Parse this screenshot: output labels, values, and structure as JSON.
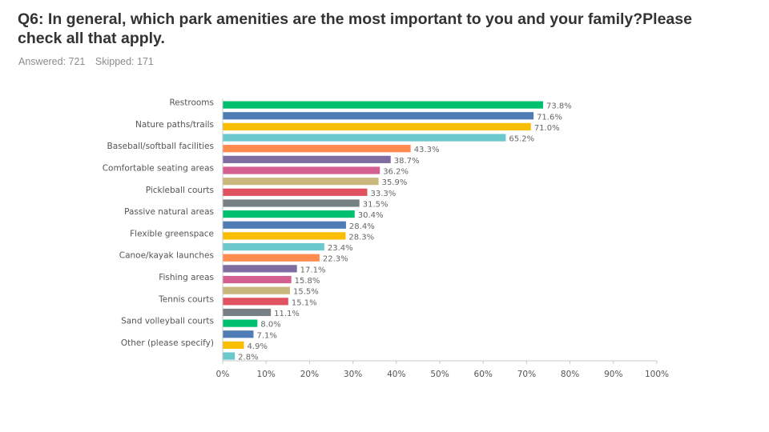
{
  "question": {
    "title": "Q6: In general, which park amenities are the most important to you and your family?Please check all that apply.",
    "answered": "Answered: 721",
    "skipped": "Skipped: 171"
  },
  "chart_data": {
    "type": "bar",
    "orientation": "horizontal",
    "title": "Q6: In general, which park amenities are the most important to you and your family?Please check all that apply.",
    "xlabel": "",
    "ylabel": "",
    "xlim": [
      0,
      100
    ],
    "x_ticks": [
      "0%",
      "10%",
      "20%",
      "30%",
      "40%",
      "50%",
      "60%",
      "70%",
      "80%",
      "90%",
      "100%"
    ],
    "categories": [
      "Restrooms",
      "",
      "Nature paths/trails",
      "",
      "Baseball/softball facilities",
      "",
      "Comfortable seating areas",
      "",
      "Pickleball courts",
      "",
      "Passive natural areas",
      "",
      "Flexible greenspace",
      "",
      "Canoe/kayak launches",
      "",
      "Fishing areas",
      "",
      "Tennis courts",
      "",
      "Sand volleyball courts",
      "",
      "Other (please specify)",
      ""
    ],
    "values": [
      73.8,
      71.6,
      71.0,
      65.2,
      43.3,
      38.7,
      36.2,
      35.9,
      33.3,
      31.5,
      30.4,
      28.4,
      28.3,
      23.4,
      22.3,
      17.1,
      15.8,
      15.5,
      15.1,
      11.1,
      8.0,
      7.1,
      4.9,
      2.8
    ],
    "value_labels": [
      "73.8%",
      "71.6%",
      "71.0%",
      "65.2%",
      "43.3%",
      "38.7%",
      "36.2%",
      "35.9%",
      "33.3%",
      "31.5%",
      "30.4%",
      "28.4%",
      "28.3%",
      "23.4%",
      "22.3%",
      "17.1%",
      "15.8%",
      "15.5%",
      "15.1%",
      "11.1%",
      "8.0%",
      "7.1%",
      "4.9%",
      "2.8%"
    ],
    "colors": [
      "#00bf6f",
      "#507cb6",
      "#f9be00",
      "#6bc8cd",
      "#ff8b4f",
      "#7f6da2",
      "#d25f90",
      "#c9b77e",
      "#e05260",
      "#778084"
    ],
    "grid": false
  }
}
